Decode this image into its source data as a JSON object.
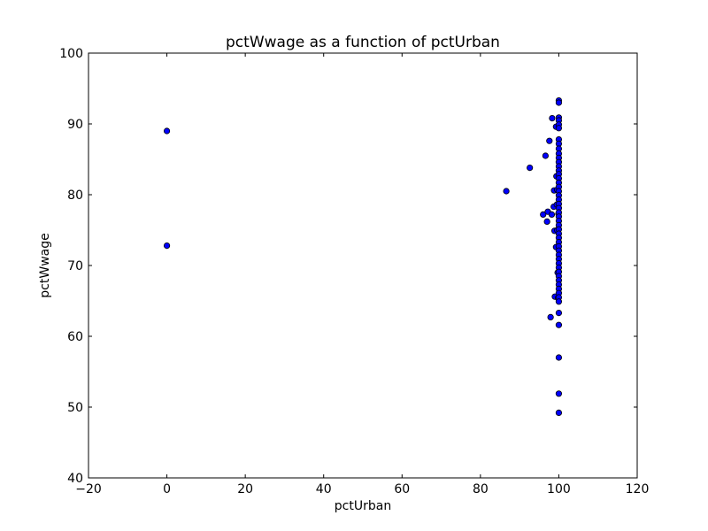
{
  "chart_data": {
    "type": "scatter",
    "title": "pctWwage as a function of pctUrban",
    "xlabel": "pctUrban",
    "ylabel": "pctWwage",
    "xlim": [
      -20,
      120
    ],
    "ylim": [
      40,
      100
    ],
    "xticks": [
      -20,
      0,
      20,
      40,
      60,
      80,
      100,
      120
    ],
    "yticks": [
      40,
      50,
      60,
      70,
      80,
      90,
      100
    ],
    "grid": false,
    "marker_color": "#0000ff",
    "marker_edge_color": "#000000",
    "points": [
      [
        0,
        89.0
      ],
      [
        0,
        72.8
      ],
      [
        86.6,
        80.5
      ],
      [
        92.6,
        83.8
      ],
      [
        96.0,
        77.2
      ],
      [
        96.6,
        85.5
      ],
      [
        97.0,
        76.2
      ],
      [
        97.2,
        77.6
      ],
      [
        97.6,
        87.6
      ],
      [
        97.9,
        62.7
      ],
      [
        98.2,
        77.2
      ],
      [
        98.3,
        90.8
      ],
      [
        98.7,
        78.3
      ],
      [
        98.8,
        80.6
      ],
      [
        98.9,
        74.9
      ],
      [
        99.0,
        65.6
      ],
      [
        99.3,
        89.6
      ],
      [
        99.3,
        72.6
      ],
      [
        99.4,
        82.6
      ],
      [
        99.5,
        78.6
      ],
      [
        99.6,
        80.7
      ],
      [
        99.6,
        75.0
      ],
      [
        99.7,
        69.0
      ],
      [
        99.8,
        65.4
      ],
      [
        99.9,
        77.3
      ],
      [
        100,
        93.3
      ],
      [
        100,
        93.0
      ],
      [
        100,
        90.9
      ],
      [
        100,
        90.5
      ],
      [
        100,
        89.9
      ],
      [
        100,
        89.4
      ],
      [
        100,
        87.8
      ],
      [
        100,
        87.2
      ],
      [
        100,
        86.5
      ],
      [
        100,
        85.8
      ],
      [
        100,
        85.2
      ],
      [
        100,
        84.6
      ],
      [
        100,
        84.0
      ],
      [
        100,
        83.4
      ],
      [
        100,
        82.9
      ],
      [
        100,
        82.3
      ],
      [
        100,
        81.7
      ],
      [
        100,
        81.1
      ],
      [
        100,
        80.5
      ],
      [
        100,
        79.9
      ],
      [
        100,
        79.3
      ],
      [
        100,
        78.7
      ],
      [
        100,
        78.1
      ],
      [
        100,
        77.5
      ],
      [
        100,
        76.9
      ],
      [
        100,
        76.3
      ],
      [
        100,
        75.7
      ],
      [
        100,
        75.1
      ],
      [
        100,
        74.5
      ],
      [
        100,
        73.9
      ],
      [
        100,
        73.3
      ],
      [
        100,
        72.7
      ],
      [
        100,
        72.1
      ],
      [
        100,
        71.5
      ],
      [
        100,
        70.9
      ],
      [
        100,
        70.3
      ],
      [
        100,
        69.7
      ],
      [
        100,
        69.1
      ],
      [
        100,
        68.5
      ],
      [
        100,
        67.9
      ],
      [
        100,
        67.3
      ],
      [
        100,
        66.7
      ],
      [
        100,
        66.1
      ],
      [
        100,
        65.5
      ],
      [
        100,
        64.9
      ],
      [
        100,
        63.3
      ],
      [
        100,
        61.6
      ],
      [
        100,
        57.0
      ],
      [
        100,
        51.9
      ],
      [
        100,
        49.2
      ]
    ]
  }
}
